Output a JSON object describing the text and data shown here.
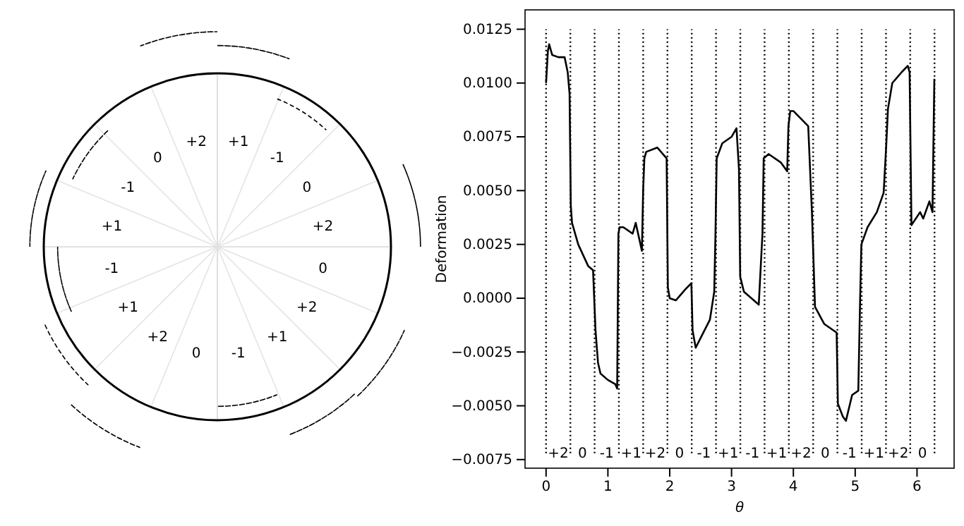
{
  "chart_data": [
    {
      "type": "other",
      "annotations": [
        "+1",
        "-1",
        "0",
        "+2",
        "0",
        "+2",
        "+1",
        "-1",
        "0",
        "+2",
        "+1",
        "-1",
        "+1",
        "-1",
        "0",
        "+2"
      ]
    },
    {
      "type": "line",
      "xlabel": "θ",
      "ylabel": "Deformation",
      "xlim": [
        -0.34,
        6.6
      ],
      "ylim": [
        -0.0079,
        0.0134
      ],
      "xticks": [
        0,
        1,
        2,
        3,
        4,
        5,
        6
      ],
      "yticks": [
        {
          "value": -0.0075,
          "label": "−0.0075"
        },
        {
          "value": -0.005,
          "label": "−0.0050"
        },
        {
          "value": -0.0025,
          "label": "−0.0025"
        },
        {
          "value": 0,
          "label": "0.0000"
        },
        {
          "value": 0.0025,
          "label": "0.0025"
        },
        {
          "value": 0.005,
          "label": "0.0050"
        },
        {
          "value": 0.0075,
          "label": "0.0075"
        },
        {
          "value": 0.01,
          "label": "0.0100"
        },
        {
          "value": 0.0125,
          "label": "0.0125"
        }
      ],
      "grid": false,
      "marker": "none",
      "line_style": "solid",
      "series": [
        {
          "color": "#000000",
          "x": [
            0,
            0.03,
            0.05,
            0.1,
            0.2,
            0.3,
            0.35,
            0.38,
            0.4,
            0.42,
            0.52,
            0.68,
            0.76,
            0.8,
            0.84,
            0.88,
            1.0,
            1.12,
            1.15,
            1.17,
            1.19,
            1.25,
            1.4,
            1.45,
            1.55,
            1.57,
            1.59,
            1.62,
            1.8,
            1.95,
            1.97,
            2.0,
            2.1,
            2.25,
            2.35,
            2.37,
            2.42,
            2.65,
            2.72,
            2.74,
            2.76,
            2.85,
            3.0,
            3.08,
            3.12,
            3.14,
            3.2,
            3.44,
            3.5,
            3.52,
            3.6,
            3.8,
            3.9,
            3.92,
            3.95,
            4.0,
            4.24,
            4.3,
            4.35,
            4.5,
            4.7,
            4.72,
            4.8,
            4.85,
            4.95,
            5.05,
            5.08,
            5.1,
            5.2,
            5.35,
            5.46,
            5.5,
            5.53,
            5.6,
            5.75,
            5.85,
            5.88,
            5.91,
            6.05,
            6.1,
            6.2,
            6.25,
            6.28
          ],
          "values": [
            0.01,
            0.0115,
            0.0118,
            0.0113,
            0.0112,
            0.0112,
            0.0105,
            0.0095,
            0.0043,
            0.0035,
            0.0025,
            0.0015,
            0.0013,
            -0.0015,
            -0.003,
            -0.0035,
            -0.0038,
            -0.004,
            -0.0042,
            0.003,
            0.0033,
            0.0033,
            0.003,
            0.0035,
            0.0022,
            0.005,
            0.0065,
            0.0068,
            0.007,
            0.0065,
            0.0005,
            0.0,
            -0.0001,
            0.0004,
            0.0007,
            -0.0015,
            -0.0023,
            -0.001,
            0.0003,
            0.003,
            0.0065,
            0.0072,
            0.0075,
            0.0079,
            0.006,
            0.001,
            0.0003,
            -0.0003,
            0.003,
            0.0065,
            0.0067,
            0.0063,
            0.0059,
            0.008,
            0.0087,
            0.0087,
            0.008,
            0.004,
            -0.0004,
            -0.0012,
            -0.0016,
            -0.0049,
            -0.0055,
            -0.0057,
            -0.0045,
            -0.0043,
            0.0,
            0.0025,
            0.0033,
            0.004,
            0.0049,
            0.007,
            0.0088,
            0.01,
            0.0105,
            0.0108,
            0.0105,
            0.0034,
            0.004,
            0.0037,
            0.0045,
            0.004,
            0.0102
          ]
        }
      ],
      "ref_lines": [
        {
          "axis": "x",
          "value": 0,
          "label": null,
          "color": "#000000",
          "line_style": "dotted"
        },
        {
          "axis": "x",
          "value": 0.393,
          "label": null,
          "color": "#000000",
          "line_style": "dotted"
        },
        {
          "axis": "x",
          "value": 0.785,
          "label": null,
          "color": "#000000",
          "line_style": "dotted"
        },
        {
          "axis": "x",
          "value": 1.178,
          "label": null,
          "color": "#000000",
          "line_style": "dotted"
        },
        {
          "axis": "x",
          "value": 1.571,
          "label": null,
          "color": "#000000",
          "line_style": "dotted"
        },
        {
          "axis": "x",
          "value": 1.963,
          "label": null,
          "color": "#000000",
          "line_style": "dotted"
        },
        {
          "axis": "x",
          "value": 2.356,
          "label": null,
          "color": "#000000",
          "line_style": "dotted"
        },
        {
          "axis": "x",
          "value": 2.749,
          "label": null,
          "color": "#000000",
          "line_style": "dotted"
        },
        {
          "axis": "x",
          "value": 3.142,
          "label": null,
          "color": "#000000",
          "line_style": "dotted"
        },
        {
          "axis": "x",
          "value": 3.534,
          "label": null,
          "color": "#000000",
          "line_style": "dotted"
        },
        {
          "axis": "x",
          "value": 3.927,
          "label": null,
          "color": "#000000",
          "line_style": "dotted"
        },
        {
          "axis": "x",
          "value": 4.32,
          "label": null,
          "color": "#000000",
          "line_style": "dotted"
        },
        {
          "axis": "x",
          "value": 4.712,
          "label": null,
          "color": "#000000",
          "line_style": "dotted"
        },
        {
          "axis": "x",
          "value": 5.105,
          "label": null,
          "color": "#000000",
          "line_style": "dotted"
        },
        {
          "axis": "x",
          "value": 5.498,
          "label": null,
          "color": "#000000",
          "line_style": "dotted"
        },
        {
          "axis": "x",
          "value": 5.89,
          "label": null,
          "color": "#000000",
          "line_style": "dotted"
        },
        {
          "axis": "x",
          "value": 6.283,
          "label": null,
          "color": "#000000",
          "line_style": "dotted"
        }
      ],
      "annotations": [
        "+2",
        "0",
        "-1",
        "+1",
        "+2",
        "0",
        "-1",
        "+1",
        "-1",
        "+1",
        "+2",
        "0",
        "-1",
        "+1",
        "+2",
        "0"
      ]
    }
  ]
}
